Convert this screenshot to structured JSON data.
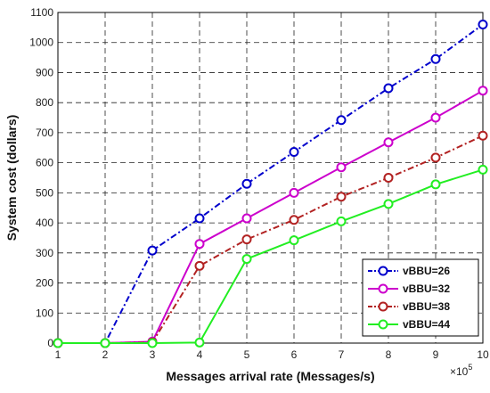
{
  "chart_data": {
    "type": "line",
    "xlabel": "Messages arrival rate (Messages/s)",
    "ylabel": "System cost (dollars)",
    "x_multiplier": "×10",
    "x_multiplier_exp": "5",
    "x": [
      1,
      2,
      3,
      4,
      5,
      6,
      7,
      8,
      9,
      10
    ],
    "xlim": [
      1,
      10
    ],
    "ylim": [
      0,
      1100
    ],
    "xticks": [
      "1",
      "2",
      "3",
      "4",
      "5",
      "6",
      "7",
      "8",
      "9",
      "10"
    ],
    "yticks": [
      "0",
      "100",
      "200",
      "300",
      "400",
      "500",
      "600",
      "700",
      "800",
      "900",
      "1000",
      "1100"
    ],
    "grid": true,
    "legend_position": "bottom-right",
    "series": [
      {
        "name": "vBBU=26",
        "color": "#0000cc",
        "dash": "dashdot",
        "values": [
          0,
          0,
          308,
          415,
          530,
          636,
          742,
          848,
          945,
          1060
        ]
      },
      {
        "name": "vBBU=32",
        "color": "#cc00cc",
        "dash": "solid",
        "values": [
          0,
          0,
          5,
          330,
          415,
          500,
          585,
          668,
          750,
          840
        ]
      },
      {
        "name": "vBBU=38",
        "color": "#b22222",
        "dash": "dashdot",
        "values": [
          0,
          0,
          2,
          257,
          345,
          410,
          487,
          550,
          617,
          690
        ]
      },
      {
        "name": "vBBU=44",
        "color": "#22ee22",
        "dash": "solid",
        "values": [
          0,
          0,
          0,
          2,
          280,
          342,
          405,
          463,
          528,
          577
        ]
      }
    ]
  }
}
